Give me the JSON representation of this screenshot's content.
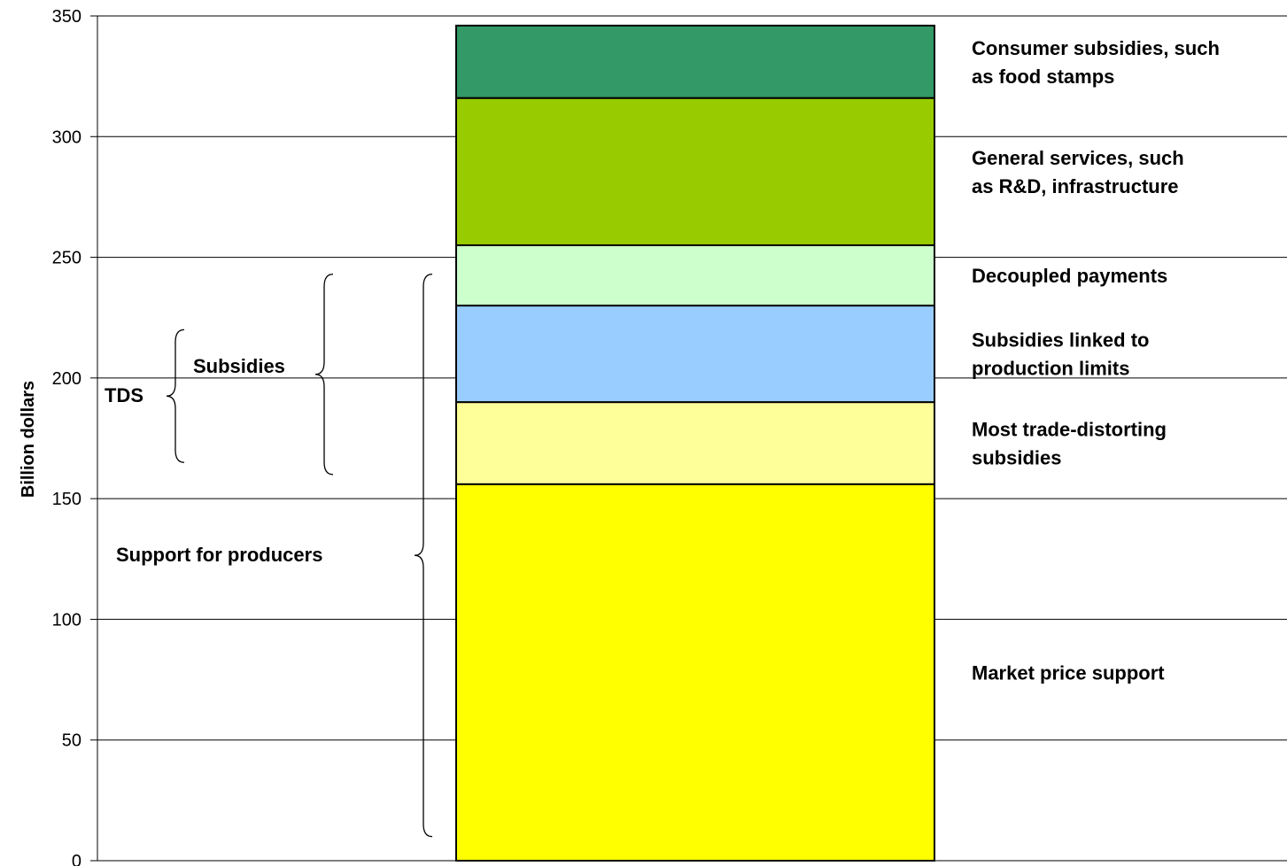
{
  "chart_data": {
    "type": "bar",
    "stacked": true,
    "title": "",
    "xlabel": "",
    "ylabel": "Billion dollars",
    "ylim": [
      0,
      350
    ],
    "yticks": [
      0,
      50,
      100,
      150,
      200,
      250,
      300,
      350
    ],
    "grid": true,
    "series": [
      {
        "name_lines": [
          "Market price support"
        ],
        "value": 156,
        "color": "#ffff00"
      },
      {
        "name_lines": [
          "Most trade-distorting",
          "subsidies"
        ],
        "value": 34,
        "color": "#ffff99"
      },
      {
        "name_lines": [
          "Subsidies linked to",
          "production limits"
        ],
        "value": 40,
        "color": "#99ccff"
      },
      {
        "name_lines": [
          "Decoupled payments"
        ],
        "value": 25,
        "color": "#ccffcc"
      },
      {
        "name_lines": [
          "General services, such",
          "as R&D, infrastructure"
        ],
        "value": 61,
        "color": "#99cc00"
      },
      {
        "name_lines": [
          "Consumer subsidies, such",
          "as food stamps"
        ],
        "value": 30,
        "color": "#339966"
      }
    ],
    "annotations": [
      {
        "label": "TDS",
        "from": 165,
        "to": 220
      },
      {
        "label": "Subsidies",
        "from": 160,
        "to": 243
      },
      {
        "label": "Support for producers",
        "from": 10,
        "to": 243
      }
    ]
  }
}
